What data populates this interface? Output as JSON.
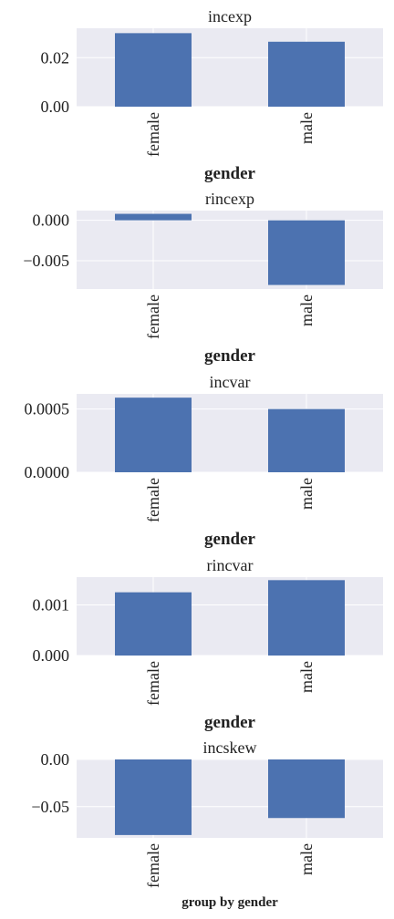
{
  "figure": {
    "suptitle": "group by gender"
  },
  "colors": {
    "bar": "#4c72b0",
    "axes_bg": "#eaeaf2",
    "grid": "#ffffff",
    "text": "#222222"
  },
  "chart_data": [
    {
      "type": "bar",
      "title": "incexp",
      "xlabel": "gender",
      "categories": [
        "female",
        "male"
      ],
      "values": [
        0.03,
        0.0265
      ],
      "ylim": [
        0.0,
        0.032
      ],
      "yticks": [
        0.0,
        0.02
      ],
      "ytick_labels": [
        "0.00",
        "0.02"
      ],
      "grid": true,
      "legend": "none"
    },
    {
      "type": "bar",
      "title": "rincexp",
      "xlabel": "gender",
      "categories": [
        "female",
        "male"
      ],
      "values": [
        0.0008,
        -0.008
      ],
      "ylim": [
        -0.0085,
        0.0012
      ],
      "yticks": [
        0.0,
        -0.005
      ],
      "ytick_labels": [
        "0.000",
        "−0.005"
      ],
      "grid": true,
      "legend": "none"
    },
    {
      "type": "bar",
      "title": "incvar",
      "xlabel": "gender",
      "categories": [
        "female",
        "male"
      ],
      "values": [
        0.00059,
        0.0005
      ],
      "ylim": [
        0.0,
        0.00062
      ],
      "yticks": [
        0.0,
        0.0005
      ],
      "ytick_labels": [
        "0.0000",
        "0.0005"
      ],
      "grid": true,
      "legend": "none"
    },
    {
      "type": "bar",
      "title": "rincvar",
      "xlabel": "gender",
      "categories": [
        "female",
        "male"
      ],
      "values": [
        0.00125,
        0.00149
      ],
      "ylim": [
        0.0,
        0.00155
      ],
      "yticks": [
        0.0,
        0.001
      ],
      "ytick_labels": [
        "0.000",
        "0.001"
      ],
      "grid": true,
      "legend": "none"
    },
    {
      "type": "bar",
      "title": "incskew",
      "xlabel": "",
      "categories": [
        "female",
        "male"
      ],
      "values": [
        -0.08,
        -0.062
      ],
      "ylim": [
        -0.083,
        0.0
      ],
      "yticks": [
        0.0,
        -0.05
      ],
      "ytick_labels": [
        "0.00",
        "−0.05"
      ],
      "grid": true,
      "legend": "none"
    }
  ]
}
